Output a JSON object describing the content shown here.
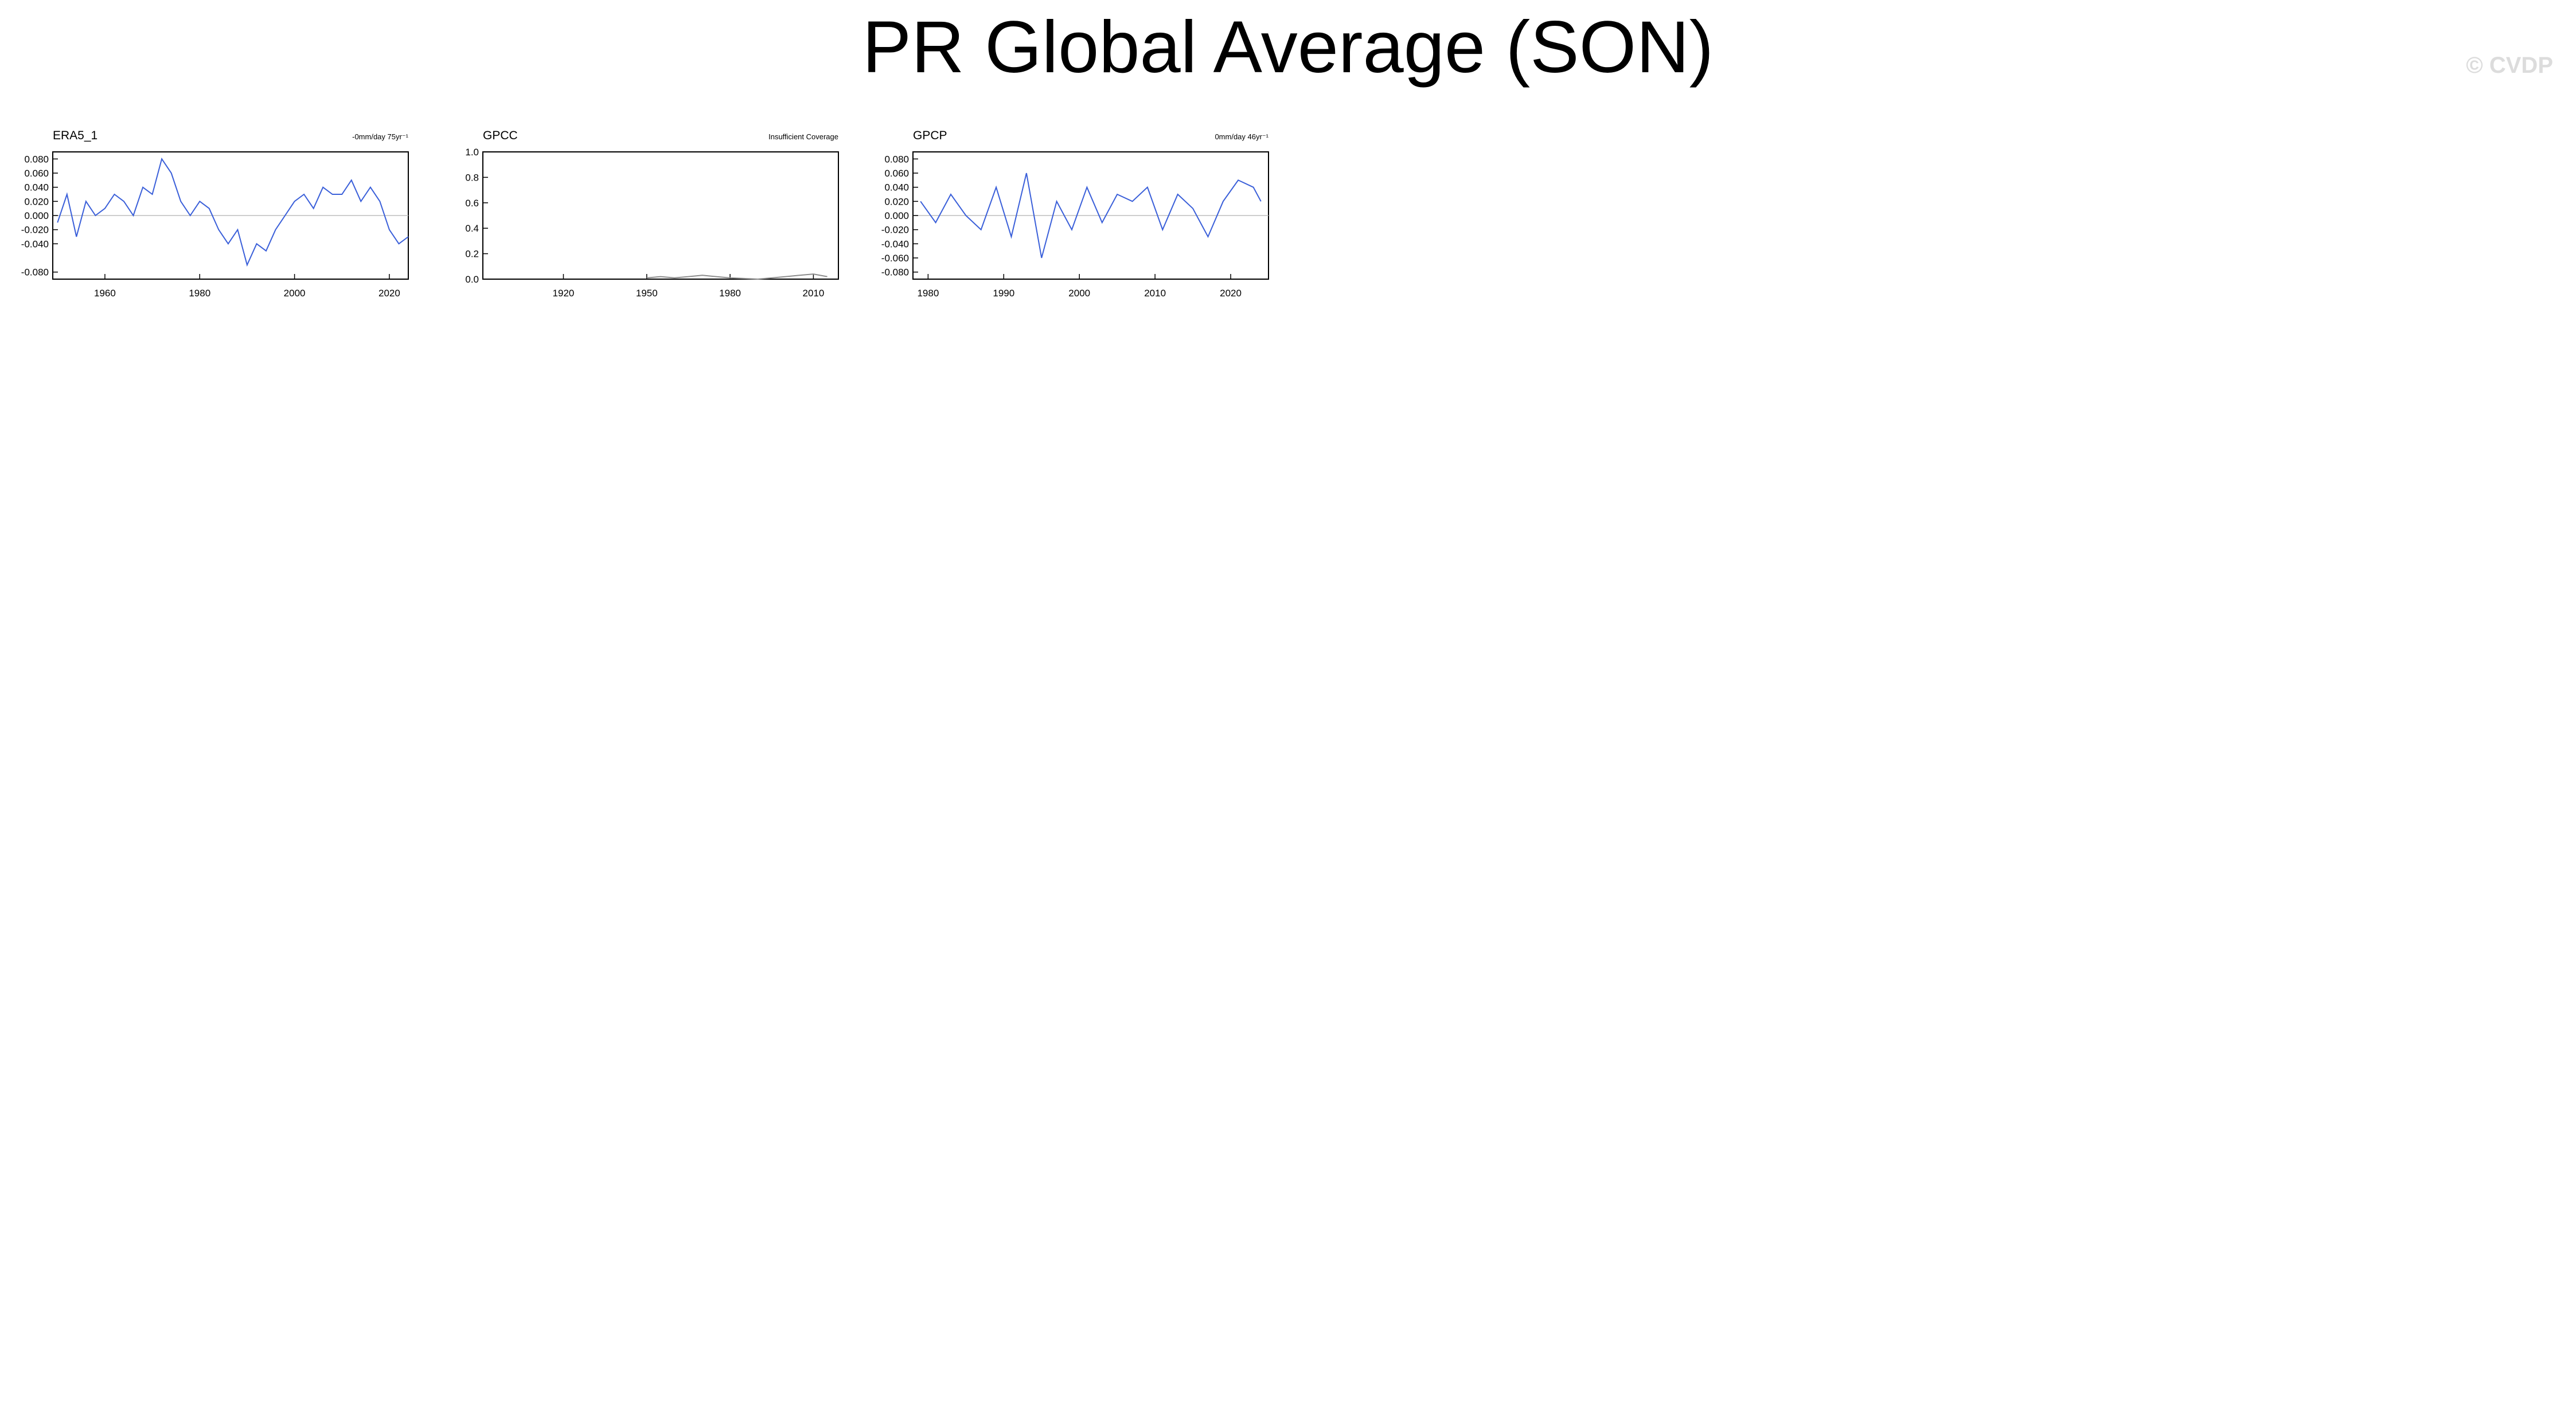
{
  "page": {
    "title": "PR Global Average (SON)",
    "watermark": "© CVDP"
  },
  "colors": {
    "obs_title": "#000000",
    "cesm2_title": "#1e7c9a",
    "cesm1_title": "#5f9a7c",
    "primary_line": "#3a5fd9",
    "obs_line": "#8c8c8c",
    "zero_line": "#bdbdbd"
  },
  "chart_data": [
    {
      "type": "line",
      "title": "ERA5_1",
      "group": "obs",
      "trend": "-0mm/day 75yr⁻¹",
      "xlim": [
        1949,
        2024
      ],
      "ylim": [
        -0.09,
        0.09
      ],
      "xticks": [
        1960,
        1980,
        2000,
        2020
      ],
      "yticks": [
        -0.08,
        -0.04,
        -0.02,
        0.0,
        0.02,
        0.04,
        0.06,
        0.08
      ],
      "ytick_labels": [
        "-0.080",
        "-0.040",
        "-0.020",
        "0.000",
        "0.020",
        "0.040",
        "0.060",
        "0.080"
      ],
      "x": [
        1950,
        1952,
        1954,
        1956,
        1958,
        1960,
        1962,
        1964,
        1966,
        1968,
        1970,
        1972,
        1974,
        1976,
        1978,
        1980,
        1982,
        1984,
        1986,
        1988,
        1990,
        1992,
        1994,
        1996,
        1998,
        2000,
        2002,
        2004,
        2006,
        2008,
        2010,
        2012,
        2014,
        2016,
        2018,
        2020,
        2022,
        2024
      ],
      "y": [
        -0.01,
        0.03,
        -0.03,
        0.02,
        0.0,
        0.01,
        0.03,
        0.02,
        0.0,
        0.04,
        0.03,
        0.08,
        0.06,
        0.02,
        0.0,
        0.02,
        0.01,
        -0.02,
        -0.04,
        -0.02,
        -0.07,
        -0.04,
        -0.05,
        -0.02,
        0.0,
        0.02,
        0.03,
        0.01,
        0.04,
        0.03,
        0.03,
        0.05,
        0.02,
        0.04,
        0.02,
        -0.02,
        -0.04,
        -0.03
      ]
    },
    {
      "type": "line",
      "title": "GPCC",
      "group": "obs",
      "trend": "Insufficient Coverage",
      "xlim": [
        1891,
        2019
      ],
      "ylim": [
        0,
        1.0
      ],
      "xticks": [
        1920,
        1950,
        1980,
        2010
      ],
      "yticks": [
        0.0,
        0.2,
        0.4,
        0.6,
        0.8,
        1.0
      ],
      "ytick_labels": [
        "0.0",
        "0.2",
        "0.4",
        "0.6",
        "0.8",
        "1.0"
      ],
      "x": [
        1950,
        1955,
        1960,
        1965,
        1970,
        1975,
        1980,
        1990,
        2000,
        2005,
        2010,
        2015
      ],
      "y": [
        0.01,
        0.02,
        0.01,
        0.02,
        0.03,
        0.02,
        0.01,
        0.0,
        0.02,
        0.03,
        0.04,
        0.02
      ]
    },
    {
      "type": "line",
      "title": "GPCP",
      "group": "obs",
      "trend": "0mm/day 46yr⁻¹",
      "xlim": [
        1978,
        2025
      ],
      "ylim": [
        -0.09,
        0.09
      ],
      "xticks": [
        1980,
        1990,
        2000,
        2010,
        2020
      ],
      "yticks": [
        -0.08,
        -0.06,
        -0.04,
        -0.02,
        0.0,
        0.02,
        0.04,
        0.06,
        0.08
      ],
      "ytick_labels": [
        "-0.080",
        "-0.060",
        "-0.040",
        "-0.020",
        "0.000",
        "0.020",
        "0.040",
        "0.060",
        "0.080"
      ],
      "x": [
        1979,
        1981,
        1983,
        1985,
        1987,
        1989,
        1991,
        1993,
        1995,
        1997,
        1999,
        2001,
        2003,
        2005,
        2007,
        2009,
        2011,
        2013,
        2015,
        2017,
        2019,
        2021,
        2023,
        2024
      ],
      "y": [
        0.02,
        -0.01,
        0.03,
        0.0,
        -0.02,
        0.04,
        -0.03,
        0.06,
        -0.06,
        0.02,
        -0.02,
        0.04,
        -0.01,
        0.03,
        0.02,
        0.04,
        -0.02,
        0.03,
        0.01,
        -0.03,
        0.02,
        0.05,
        0.04,
        0.02
      ]
    }
  ]
}
